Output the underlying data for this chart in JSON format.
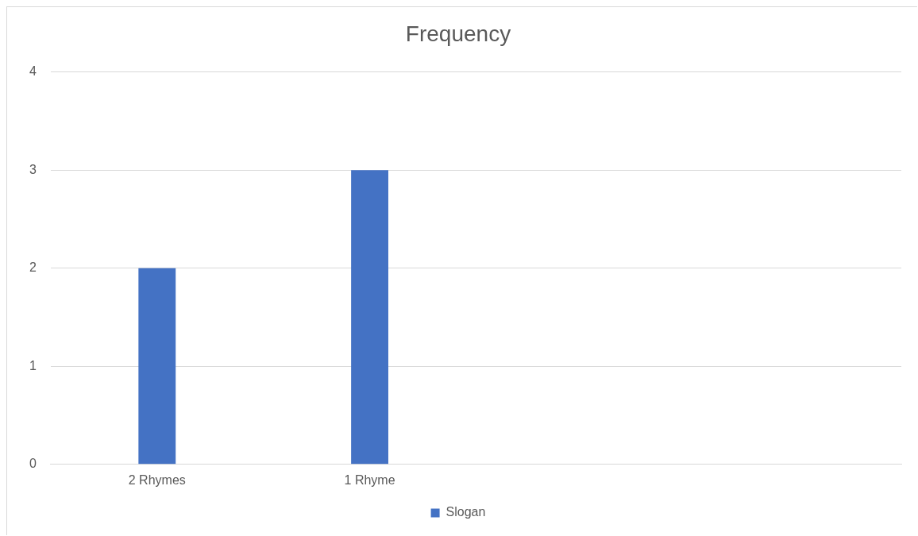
{
  "chart_data": {
    "type": "bar",
    "title": "Frequency",
    "categories": [
      "2 Rhymes",
      "1 Rhyme",
      null,
      null
    ],
    "series": [
      {
        "name": "Slogan",
        "color": "#4472c4",
        "values": [
          2,
          3,
          null,
          null
        ]
      }
    ],
    "ylim": [
      0,
      4
    ],
    "yticks": [
      0,
      1,
      2,
      3,
      4
    ],
    "grid": "y",
    "legend": "bottom"
  }
}
